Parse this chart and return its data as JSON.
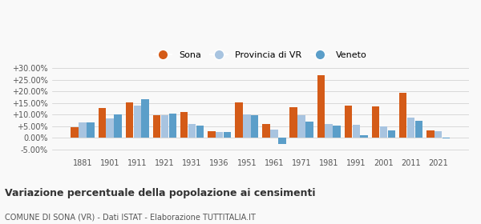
{
  "years": [
    1881,
    1901,
    1911,
    1921,
    1931,
    1936,
    1951,
    1961,
    1971,
    1981,
    1991,
    2001,
    2011,
    2021
  ],
  "sona": [
    4.5,
    12.8,
    15.3,
    9.7,
    11.0,
    3.0,
    15.2,
    6.0,
    13.3,
    27.0,
    14.0,
    13.5,
    19.3,
    3.3
  ],
  "provincia": [
    6.7,
    8.2,
    13.8,
    9.7,
    6.0,
    2.5,
    10.2,
    3.5,
    9.8,
    5.8,
    5.5,
    4.8,
    8.8,
    2.8
  ],
  "veneto": [
    6.7,
    10.0,
    16.5,
    10.3,
    5.2,
    2.5,
    9.9,
    -2.5,
    7.0,
    5.3,
    1.2,
    3.3,
    7.3,
    -0.3
  ],
  "sona_color": "#d45b18",
  "provincia_color": "#a8c4e0",
  "veneto_color": "#5b9ec9",
  "title": "Variazione percentuale della popolazione ai censimenti",
  "subtitle": "COMUNE DI SONA (VR) - Dati ISTAT - Elaborazione TUTTITALIA.IT",
  "ylim": [
    -7.5,
    32
  ],
  "yticks": [
    -5.0,
    0.0,
    5.0,
    10.0,
    15.0,
    20.0,
    25.0,
    30.0
  ],
  "ytick_labels": [
    "-5.00%",
    "0.00%",
    "+5.00%",
    "+10.00%",
    "+15.00%",
    "+20.00%",
    "+25.00%",
    "+30.00%"
  ],
  "legend_labels": [
    "Sona",
    "Provincia di VR",
    "Veneto"
  ],
  "background_color": "#f9f9f9"
}
